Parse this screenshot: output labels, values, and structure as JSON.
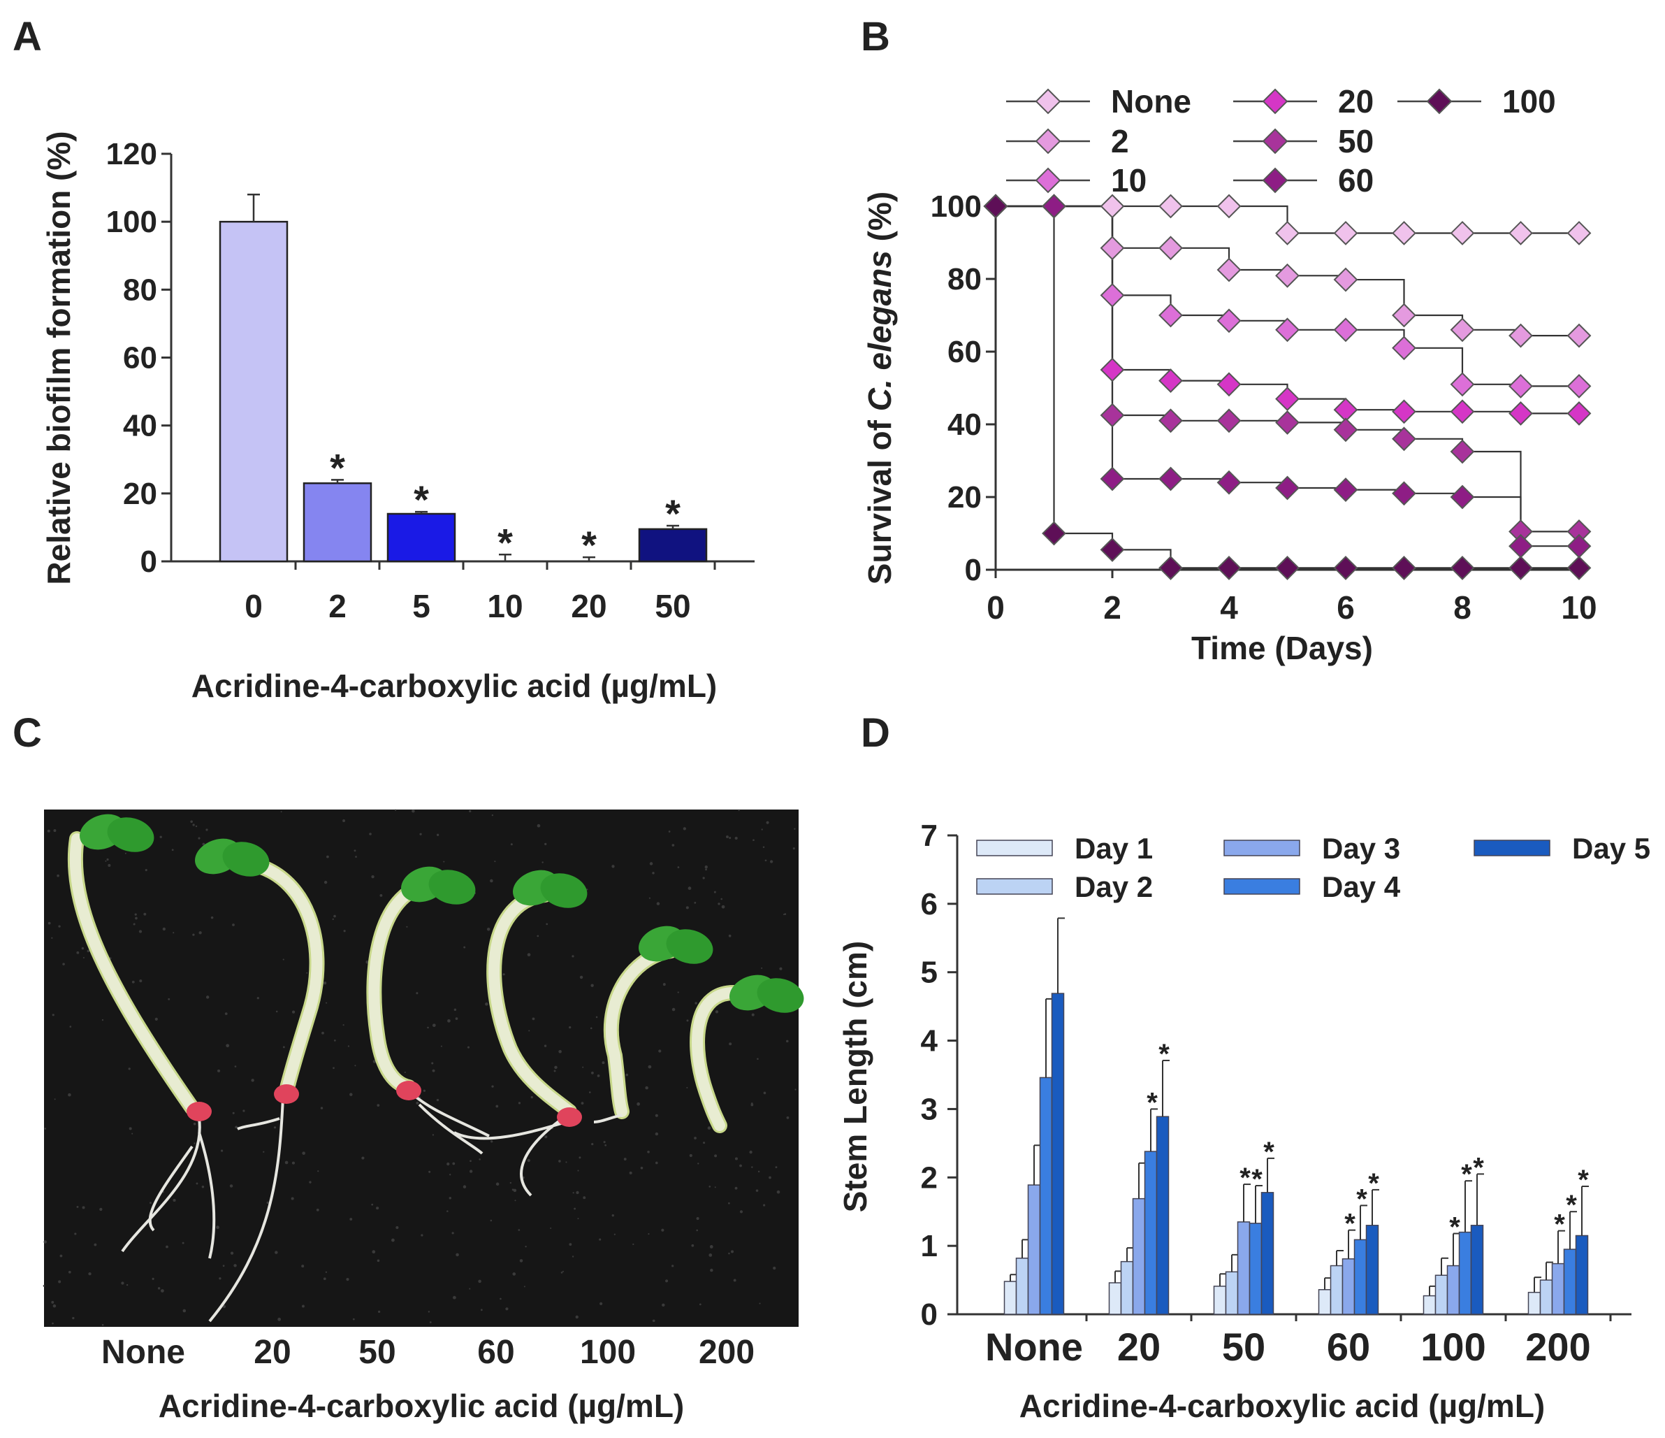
{
  "panels": {
    "A": {
      "label": "A"
    },
    "B": {
      "label": "B"
    },
    "C": {
      "label": "C"
    },
    "D": {
      "label": "D"
    }
  },
  "chart_data": [
    {
      "id": "A",
      "type": "bar",
      "title": "",
      "xlabel": "Acridine-4-carboxylic acid (µg/mL)",
      "ylabel": "Relative biofilm formation (%)",
      "ylim": [
        0,
        120
      ],
      "yticks": [
        0,
        20,
        40,
        60,
        80,
        100,
        120
      ],
      "categories": [
        "0",
        "2",
        "5",
        "10",
        "20",
        "50"
      ],
      "values": [
        100,
        23,
        14,
        0,
        0,
        9.5
      ],
      "errors": [
        8,
        1,
        0.6,
        2,
        1.2,
        1
      ],
      "significance": [
        "",
        "*",
        "*",
        "*",
        "*",
        "*"
      ],
      "colors": [
        "#c5c3f5",
        "#8585f0",
        "#1a1ae6",
        "#6b6bd6",
        "#5555cc",
        "#101280"
      ]
    },
    {
      "id": "B",
      "type": "line",
      "step": true,
      "xlabel": "Time (Days)",
      "ylabel": "Survival of C. elegans (%)",
      "ylabel_parts": [
        "Survival of ",
        "C. elegans",
        " (%)"
      ],
      "xlim": [
        0,
        10
      ],
      "ylim": [
        0,
        100
      ],
      "xticks": [
        0,
        2,
        4,
        6,
        8,
        10
      ],
      "yticks": [
        0,
        20,
        40,
        60,
        80,
        100
      ],
      "x": [
        0,
        1,
        2,
        3,
        4,
        5,
        6,
        7,
        8,
        9,
        10
      ],
      "series": [
        {
          "name": "None",
          "color": "#f0c2ec",
          "values": [
            100,
            100,
            100,
            100,
            100,
            92.6,
            92.6,
            92.6,
            92.6,
            92.6,
            92.6
          ]
        },
        {
          "name": "2",
          "color": "#e49adf",
          "values": [
            100,
            100,
            88.5,
            88.5,
            82.5,
            80.9,
            79.8,
            70,
            66,
            64.4,
            64.4
          ]
        },
        {
          "name": "10",
          "color": "#dc6fd8",
          "values": [
            100,
            100,
            75.5,
            70,
            68.5,
            66,
            66,
            61,
            51,
            50.5,
            50.5
          ]
        },
        {
          "name": "20",
          "color": "#d536c6",
          "values": [
            100,
            100,
            55,
            52,
            51,
            47,
            44,
            43.5,
            43.5,
            43,
            43
          ]
        },
        {
          "name": "50",
          "color": "#a8339b",
          "values": [
            100,
            100,
            42.5,
            41,
            41,
            40.5,
            38.5,
            36,
            32.5,
            10.5,
            10.5
          ]
        },
        {
          "name": "60",
          "color": "#8e1d85",
          "values": [
            100,
            100,
            25,
            25,
            24,
            22.5,
            22,
            21,
            20,
            6.5,
            6.5
          ]
        },
        {
          "name": "100",
          "color": "#5e0f57",
          "values": [
            100,
            10,
            5.5,
            0.5,
            0.5,
            0.5,
            0.5,
            0.5,
            0.5,
            0.5,
            0.5
          ]
        }
      ]
    },
    {
      "id": "D",
      "type": "bar",
      "xlabel": "Acridine-4-carboxylic acid (µg/mL)",
      "ylabel": "Stem Length (cm)",
      "ylim": [
        0,
        7
      ],
      "yticks": [
        0,
        1,
        2,
        3,
        4,
        5,
        6,
        7
      ],
      "categories": [
        "None",
        "20",
        "50",
        "60",
        "100",
        "200"
      ],
      "series": [
        {
          "name": "Day 1",
          "color": "#dde9f8",
          "values": [
            0.48,
            0.46,
            0.41,
            0.36,
            0.27,
            0.32
          ],
          "errors": [
            0.1,
            0.17,
            0.18,
            0.17,
            0.14,
            0.22
          ]
        },
        {
          "name": "Day 2",
          "color": "#bcd3f4",
          "values": [
            0.82,
            0.77,
            0.62,
            0.71,
            0.57,
            0.5
          ],
          "errors": [
            0.27,
            0.2,
            0.25,
            0.22,
            0.25,
            0.26
          ]
        },
        {
          "name": "Day 3",
          "color": "#8aa8ec",
          "values": [
            1.89,
            1.69,
            1.35,
            0.81,
            0.71,
            0.74
          ],
          "errors": [
            0.58,
            0.52,
            0.55,
            0.42,
            0.47,
            0.48
          ]
        },
        {
          "name": "Day 4",
          "color": "#3a7ee0",
          "values": [
            3.46,
            2.38,
            1.33,
            1.09,
            1.2,
            0.95
          ],
          "errors": [
            1.15,
            0.62,
            0.55,
            0.5,
            0.75,
            0.55
          ]
        },
        {
          "name": "Day 5",
          "color": "#1a5bbf",
          "values": [
            4.69,
            2.89,
            1.78,
            1.3,
            1.3,
            1.15
          ],
          "errors": [
            1.1,
            0.82,
            0.5,
            0.52,
            0.75,
            0.72
          ]
        }
      ],
      "significance": [
        [
          "",
          "",
          "",
          "",
          ""
        ],
        [
          "",
          "",
          "",
          "*",
          "*"
        ],
        [
          "",
          "",
          "*",
          "*",
          "*"
        ],
        [
          "",
          "",
          "*",
          "*",
          "*"
        ],
        [
          "",
          "",
          "*",
          "*",
          "*"
        ],
        [
          "",
          "",
          "*",
          "*",
          "*"
        ]
      ]
    }
  ],
  "photo": {
    "caption": "Acridine-4-carboxylic acid (µg/mL)",
    "labels": [
      "None",
      "20",
      "50",
      "60",
      "100",
      "200"
    ],
    "background": "#161616",
    "stem_color": "#e8ecd2",
    "leaf_color": "#3aa637",
    "seed_color": "#e0445c"
  }
}
